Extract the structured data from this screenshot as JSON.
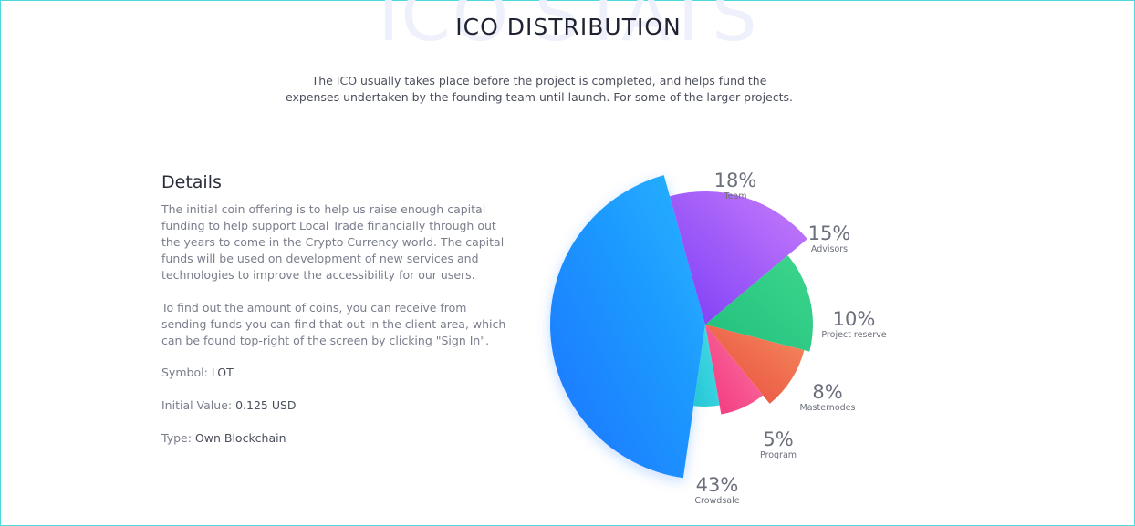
{
  "header": {
    "background_text": "ICO STATS",
    "title": "ICO DISTRIBUTION",
    "subtitle": "The ICO usually takes place before the project is completed, and helps fund the expenses undertaken by the founding team until launch. For some of the larger projects."
  },
  "details": {
    "heading": "Details",
    "paragraph1": "The initial coin offering is to help us raise enough capital funding to help support Local Trade financially through out the years to come in the Crypto Currency world. The capital funds will be used on development of new services and technologies to improve the accessibility for our users.",
    "paragraph2": "To find out the amount of coins, you can receive from sending funds you can find that out in the client area, which can be found top-right of the screen by clicking \"Sign In\".",
    "symbol_label": "Symbol:",
    "symbol_value": "LOT",
    "initial_value_label": "Initial Value:",
    "initial_value_value": "0.125 USD",
    "type_label": "Type:",
    "type_value": "Own Blockchain"
  },
  "chart_data": {
    "type": "pie",
    "slices": [
      {
        "label": "Team",
        "value": 18,
        "display": "18%",
        "colors": [
          "#7b3cf6",
          "#c77dfb"
        ]
      },
      {
        "label": "Advisors",
        "value": 15,
        "display": "15%",
        "colors": [
          "#21bf7e",
          "#3dd68c"
        ]
      },
      {
        "label": "Project reserve",
        "value": 10,
        "display": "10%",
        "colors": [
          "#e84a3c",
          "#f58a5e"
        ]
      },
      {
        "label": "Masternodes",
        "value": 8,
        "display": "8%",
        "colors": [
          "#f2357e",
          "#fb77a4"
        ]
      },
      {
        "label": "Program",
        "value": 5,
        "display": "5%",
        "colors": [
          "#25c6d6",
          "#48dde6"
        ]
      },
      {
        "label": "Crowdsale",
        "value": 43,
        "display": "43%",
        "colors": [
          "#1a73ff",
          "#22b4ff"
        ]
      }
    ]
  }
}
